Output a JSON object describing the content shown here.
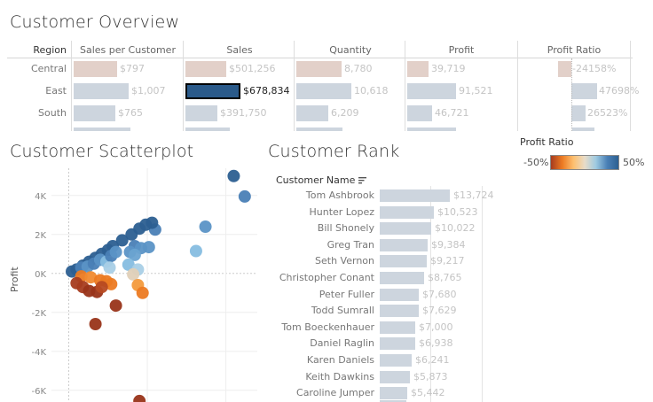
{
  "overview": {
    "title": "Customer Overview",
    "region_header": "Region",
    "columns": [
      "Sales per Customer",
      "Sales",
      "Quantity",
      "Profit",
      "Profit Ratio"
    ],
    "rows": [
      {
        "region": "Central",
        "values": [
          "$797",
          "$501,256",
          "8,780",
          "39,719",
          "-24158%"
        ],
        "numbers": [
          797,
          501256,
          8780,
          39719,
          -24158
        ],
        "selected": [
          false,
          false,
          false,
          false,
          false
        ]
      },
      {
        "region": "East",
        "values": [
          "$1,007",
          "$678,834",
          "10,618",
          "91,521",
          "47698%"
        ],
        "numbers": [
          1007,
          678834,
          10618,
          91521,
          47698
        ],
        "selected": [
          false,
          true,
          false,
          false,
          false
        ]
      },
      {
        "region": "South",
        "values": [
          "$765",
          "$391,750",
          "6,209",
          "46,721",
          "26523%"
        ],
        "numbers": [
          765,
          391750,
          6209,
          46721,
          26523
        ],
        "selected": [
          false,
          false,
          false,
          false,
          false
        ]
      }
    ],
    "colors": {
      "positive": "#cdd5de",
      "negative": "#e2d0c9",
      "selected": "#2a5a8a"
    }
  },
  "scatter": {
    "title": "Customer Scatterplot",
    "chart_data": {
      "type": "scatter",
      "ylabel": "Profit",
      "xlabel": "",
      "y_ticks": [
        "4K",
        "2K",
        "0K",
        "-2K",
        "-4K",
        "-6K"
      ],
      "y_tick_values": [
        4000,
        2000,
        0,
        -2000,
        -4000,
        -6000
      ],
      "ylim": [
        -6600,
        5400
      ],
      "xlim": [
        -1100,
        12000
      ],
      "grid": true,
      "points": [
        {
          "x": 10500,
          "y": 5000,
          "color": "#2c5f91"
        },
        {
          "x": 11200,
          "y": 3950,
          "color": "#4a80b6"
        },
        {
          "x": 5500,
          "y": 2250,
          "color": "#4a80b6"
        },
        {
          "x": 8700,
          "y": 2400,
          "color": "#5b93c6"
        },
        {
          "x": 8100,
          "y": 1150,
          "color": "#86bde0"
        },
        {
          "x": 200,
          "y": 100,
          "color": "#2c5f91"
        },
        {
          "x": 500,
          "y": 200,
          "color": "#2c5f91"
        },
        {
          "x": 900,
          "y": 400,
          "color": "#2c5f91"
        },
        {
          "x": 1300,
          "y": 600,
          "color": "#2c5f91"
        },
        {
          "x": 1700,
          "y": 800,
          "color": "#2c5f91"
        },
        {
          "x": 2100,
          "y": 1000,
          "color": "#2c5f91"
        },
        {
          "x": 2500,
          "y": 1200,
          "color": "#2c5f91"
        },
        {
          "x": 2800,
          "y": 1400,
          "color": "#2c5f91"
        },
        {
          "x": 3400,
          "y": 1700,
          "color": "#2c5f91"
        },
        {
          "x": 4000,
          "y": 2000,
          "color": "#2c5f91"
        },
        {
          "x": 4500,
          "y": 2300,
          "color": "#2c5f91"
        },
        {
          "x": 4900,
          "y": 2500,
          "color": "#2c5f91"
        },
        {
          "x": 5300,
          "y": 2600,
          "color": "#2c5f91"
        },
        {
          "x": 800,
          "y": 300,
          "color": "#4a80b6"
        },
        {
          "x": 1200,
          "y": 350,
          "color": "#5b93c6"
        },
        {
          "x": 1600,
          "y": 500,
          "color": "#4a80b6"
        },
        {
          "x": 2000,
          "y": 700,
          "color": "#5b93c6"
        },
        {
          "x": 2400,
          "y": 600,
          "color": "#86bde0"
        },
        {
          "x": 2700,
          "y": 900,
          "color": "#4a80b6"
        },
        {
          "x": 3000,
          "y": 1100,
          "color": "#5b93c6"
        },
        {
          "x": 2600,
          "y": 300,
          "color": "#a9cfe6"
        },
        {
          "x": 4200,
          "y": 1400,
          "color": "#4a80b6"
        },
        {
          "x": 4600,
          "y": 1300,
          "color": "#5b93c6"
        },
        {
          "x": 3900,
          "y": 1100,
          "color": "#5b93c6"
        },
        {
          "x": 4200,
          "y": 950,
          "color": "#6aa3d1"
        },
        {
          "x": 5100,
          "y": 1350,
          "color": "#5b93c6"
        },
        {
          "x": 3800,
          "y": 450,
          "color": "#86bde0"
        },
        {
          "x": 4400,
          "y": 200,
          "color": "#a9cfe6"
        },
        {
          "x": 4100,
          "y": -50,
          "color": "#e0d0b8"
        },
        {
          "x": 4400,
          "y": -600,
          "color": "#f39a3c"
        },
        {
          "x": 4700,
          "y": -1000,
          "color": "#ec7a22"
        },
        {
          "x": 800,
          "y": -150,
          "color": "#ec7a22"
        },
        {
          "x": 1400,
          "y": -200,
          "color": "#f08a30"
        },
        {
          "x": 2000,
          "y": -350,
          "color": "#ec7a22"
        },
        {
          "x": 2400,
          "y": -400,
          "color": "#ec7a22"
        },
        {
          "x": 2700,
          "y": -550,
          "color": "#ec7a22"
        },
        {
          "x": 500,
          "y": -500,
          "color": "#a63c1f"
        },
        {
          "x": 900,
          "y": -700,
          "color": "#a63c1f"
        },
        {
          "x": 1300,
          "y": -900,
          "color": "#993419"
        },
        {
          "x": 1800,
          "y": -950,
          "color": "#993419"
        },
        {
          "x": 2100,
          "y": -700,
          "color": "#b74a22"
        },
        {
          "x": 3000,
          "y": -1650,
          "color": "#993419"
        },
        {
          "x": 1700,
          "y": -2600,
          "color": "#993419"
        },
        {
          "x": 4500,
          "y": -6550,
          "color": "#993419"
        }
      ]
    }
  },
  "rank": {
    "title": "Customer Rank",
    "column_header": "Customer Name",
    "sort_icon": "sort-descending-icon",
    "customers": [
      {
        "name": "Tom Ashbrook",
        "label": "$13,724",
        "value": 13724
      },
      {
        "name": "Hunter Lopez",
        "label": "$10,523",
        "value": 10523
      },
      {
        "name": "Bill Shonely",
        "label": "$10,022",
        "value": 10022
      },
      {
        "name": "Greg Tran",
        "label": "$9,384",
        "value": 9384
      },
      {
        "name": "Seth Vernon",
        "label": "$9,217",
        "value": 9217
      },
      {
        "name": "Christopher Conant",
        "label": "$8,765",
        "value": 8765
      },
      {
        "name": "Peter Fuller",
        "label": "$7,680",
        "value": 7680
      },
      {
        "name": "Todd Sumrall",
        "label": "$7,629",
        "value": 7629
      },
      {
        "name": "Tom Boeckenhauer",
        "label": "$7,000",
        "value": 7000
      },
      {
        "name": "Daniel Raglin",
        "label": "$6,938",
        "value": 6938
      },
      {
        "name": "Karen Daniels",
        "label": "$6,241",
        "value": 6241
      },
      {
        "name": "Keith Dawkins",
        "label": "$5,873",
        "value": 5873
      },
      {
        "name": "Caroline Jumper",
        "label": "$5,442",
        "value": 5442
      }
    ]
  },
  "legend": {
    "title": "Profit Ratio",
    "min_label": "-50%",
    "max_label": "50%",
    "gradient": [
      "#a63c1f",
      "#ec7a22",
      "#fdbf6f",
      "#e8dcc8",
      "#9ecae1",
      "#4a80b6",
      "#2c5f91"
    ]
  }
}
